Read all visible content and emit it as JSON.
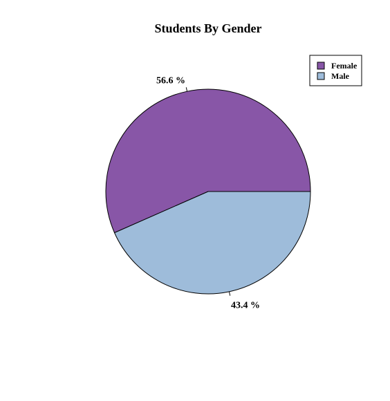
{
  "chart_data": {
    "type": "pie",
    "title": "Students By Gender",
    "categories": [
      "Female",
      "Male"
    ],
    "values": [
      56.6,
      43.4
    ],
    "labels": [
      "56.6 %",
      "43.4 %"
    ],
    "colors": [
      "#8856A7",
      "#9EBCDA"
    ],
    "legend": {
      "entries": [
        "Female",
        "Male"
      ],
      "placement": "top-right"
    }
  }
}
